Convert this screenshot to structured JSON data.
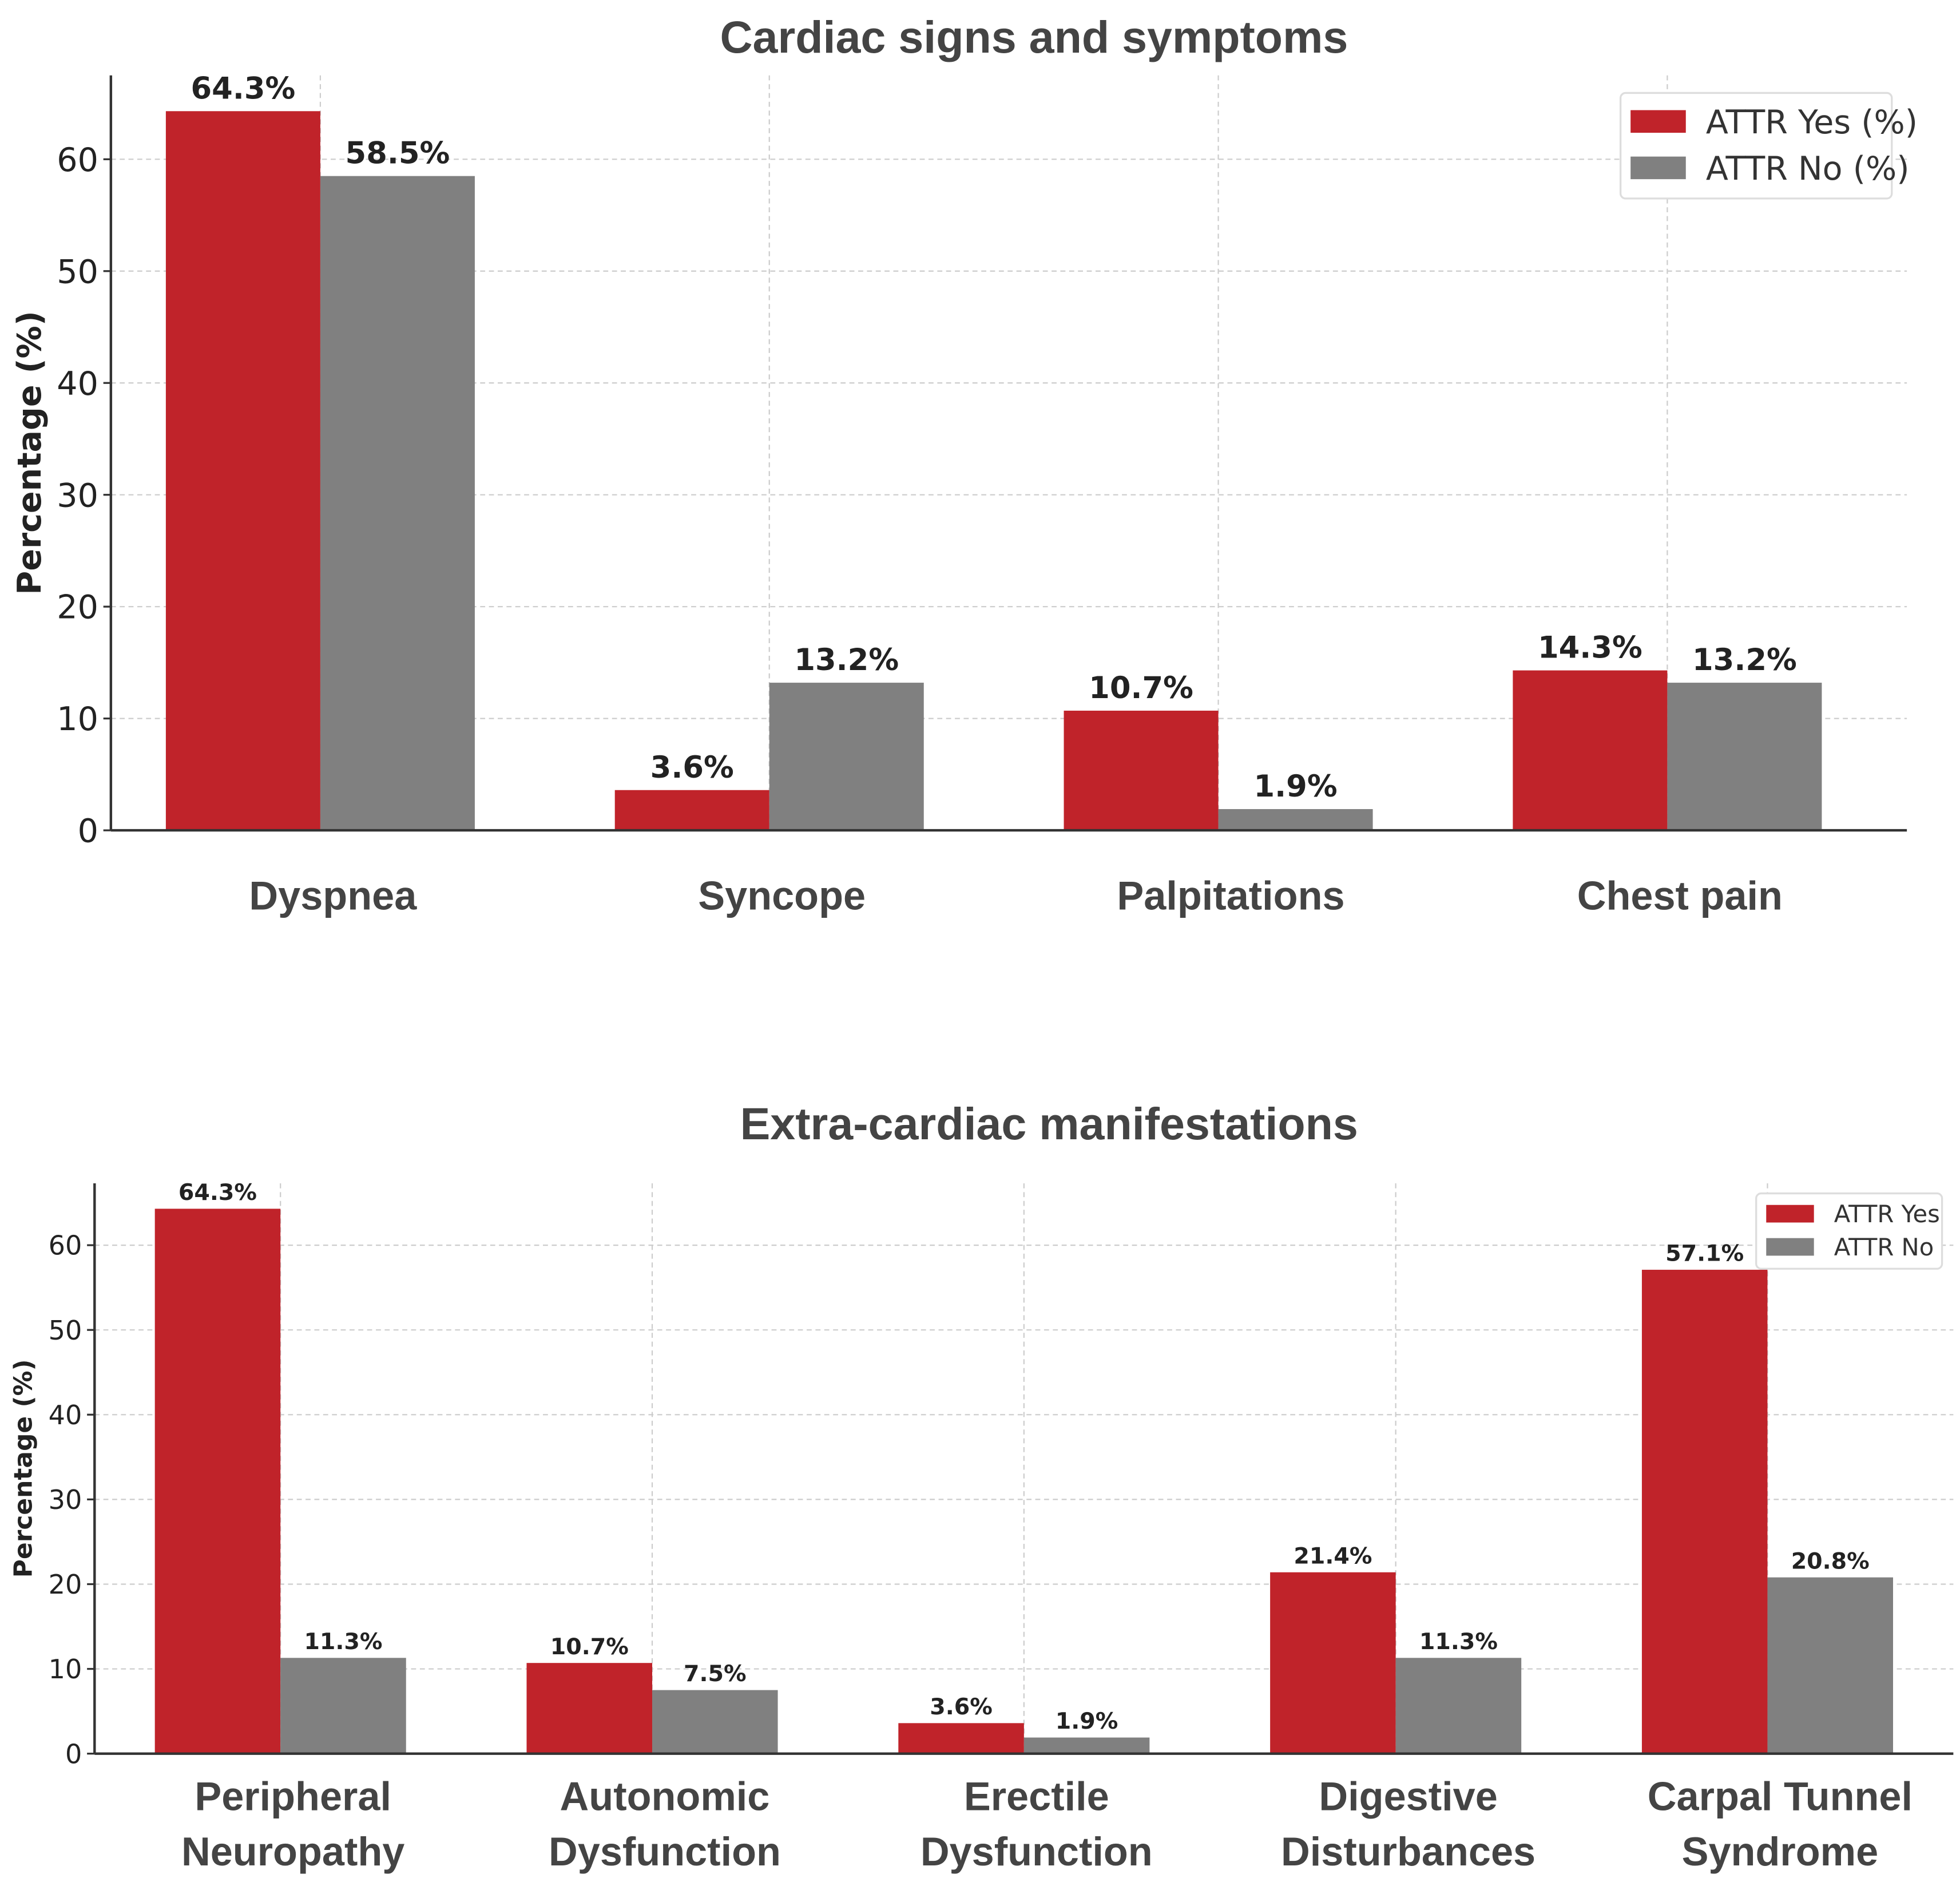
{
  "colors": {
    "yes": "#c0232a",
    "no": "#808080"
  },
  "chart_data": [
    {
      "type": "bar",
      "title": "Cardiac signs and symptoms",
      "xlabel": "",
      "ylabel": "Percentage (%)",
      "ylim": [
        0,
        67.5
      ],
      "yticks": [
        0,
        10,
        20,
        30,
        40,
        50,
        60
      ],
      "grid": true,
      "legend_position": "top-right",
      "categories": [
        [
          "Dyspnea"
        ],
        [
          "Syncope"
        ],
        [
          "Palpitations"
        ],
        [
          "Chest pain"
        ]
      ],
      "series": [
        {
          "name": "ATTR Yes (%)",
          "values": [
            64.3,
            3.6,
            10.7,
            14.3
          ],
          "labels": [
            "64.3%",
            "3.6%",
            "10.7%",
            "14.3%"
          ]
        },
        {
          "name": "ATTR No (%)",
          "values": [
            58.5,
            13.2,
            1.9,
            13.2
          ],
          "labels": [
            "58.5%",
            "13.2%",
            "1.9%",
            "13.2%"
          ]
        }
      ]
    },
    {
      "type": "bar",
      "title": "Extra-cardiac manifestations",
      "xlabel": "",
      "ylabel": "Percentage (%)",
      "ylim": [
        0,
        67.3
      ],
      "yticks": [
        0,
        10,
        20,
        30,
        40,
        50,
        60
      ],
      "grid": true,
      "legend_position": "top-right",
      "categories": [
        [
          "Peripheral",
          "Neuropathy"
        ],
        [
          "Autonomic",
          "Dysfunction"
        ],
        [
          "Erectile",
          "Dysfunction"
        ],
        [
          "Digestive",
          "Disturbances"
        ],
        [
          "Carpal Tunnel",
          "Syndrome"
        ]
      ],
      "series": [
        {
          "name": "ATTR Yes",
          "values": [
            64.3,
            10.7,
            3.6,
            21.4,
            57.1
          ],
          "labels": [
            "64.3%",
            "10.7%",
            "3.6%",
            "21.4%",
            "57.1%"
          ]
        },
        {
          "name": "ATTR No",
          "values": [
            11.3,
            7.5,
            1.9,
            11.3,
            20.8
          ],
          "labels": [
            "11.3%",
            "7.5%",
            "1.9%",
            "11.3%",
            "20.8%"
          ]
        }
      ]
    }
  ]
}
